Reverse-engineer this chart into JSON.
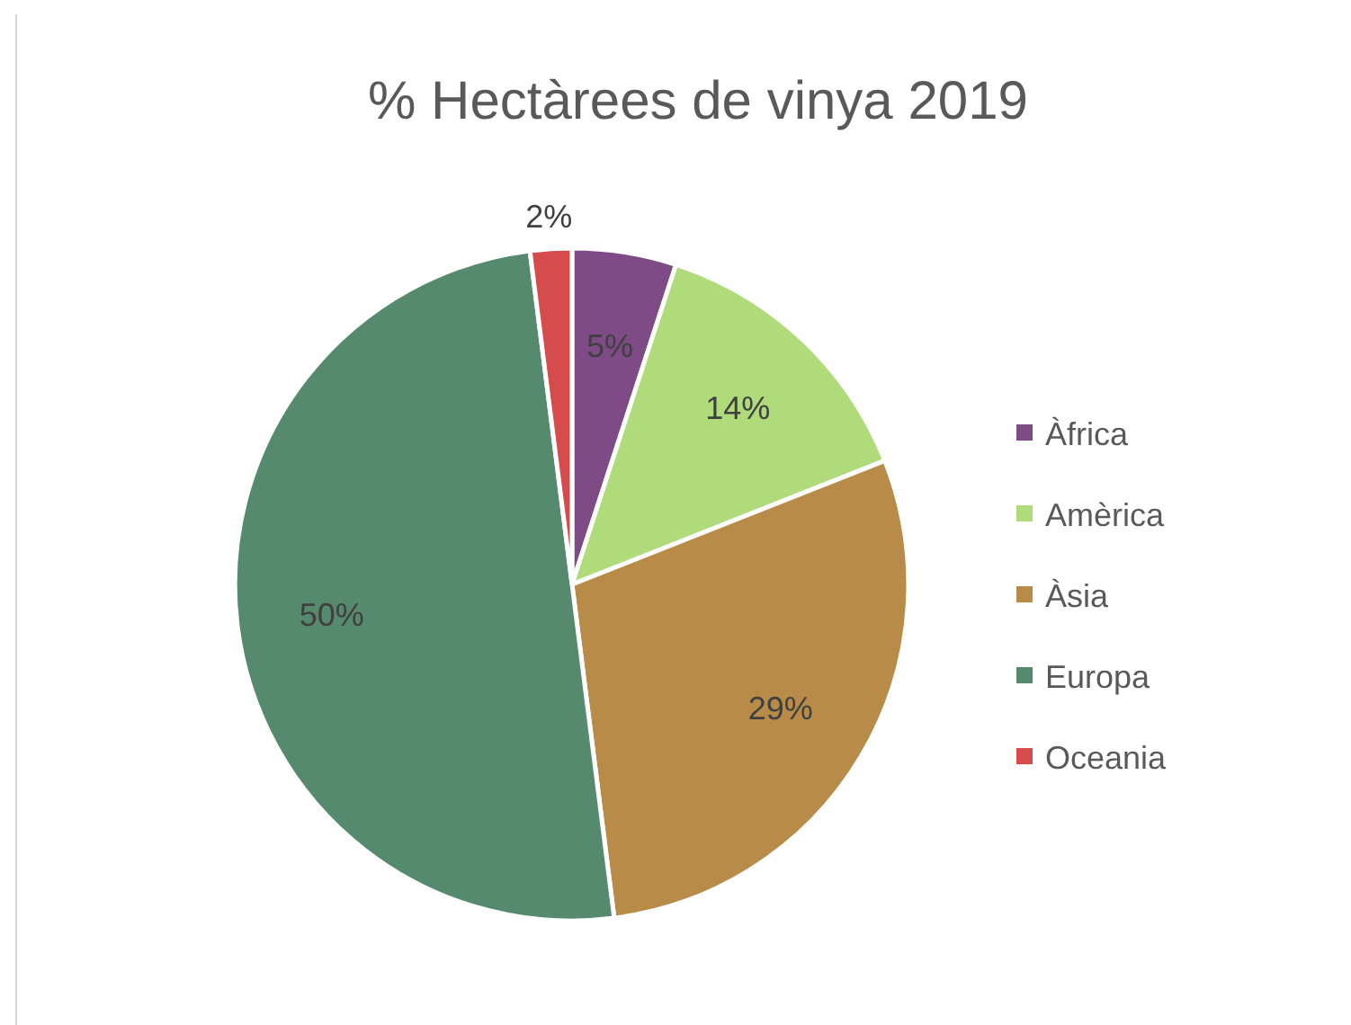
{
  "chart_data": {
    "type": "pie",
    "title": "% Hectàrees de vinya 2019",
    "categories": [
      "Àfrica",
      "Amèrica",
      "Àsia",
      "Europa",
      "Oceania"
    ],
    "values": [
      5,
      14,
      29,
      50,
      2
    ],
    "colors": [
      "#7f4b87",
      "#afdb7a",
      "#b88c48",
      "#568a6e",
      "#d64c4c"
    ],
    "value_labels": [
      "5%",
      "14%",
      "29%",
      "50%",
      "2%"
    ],
    "legend": "right"
  }
}
